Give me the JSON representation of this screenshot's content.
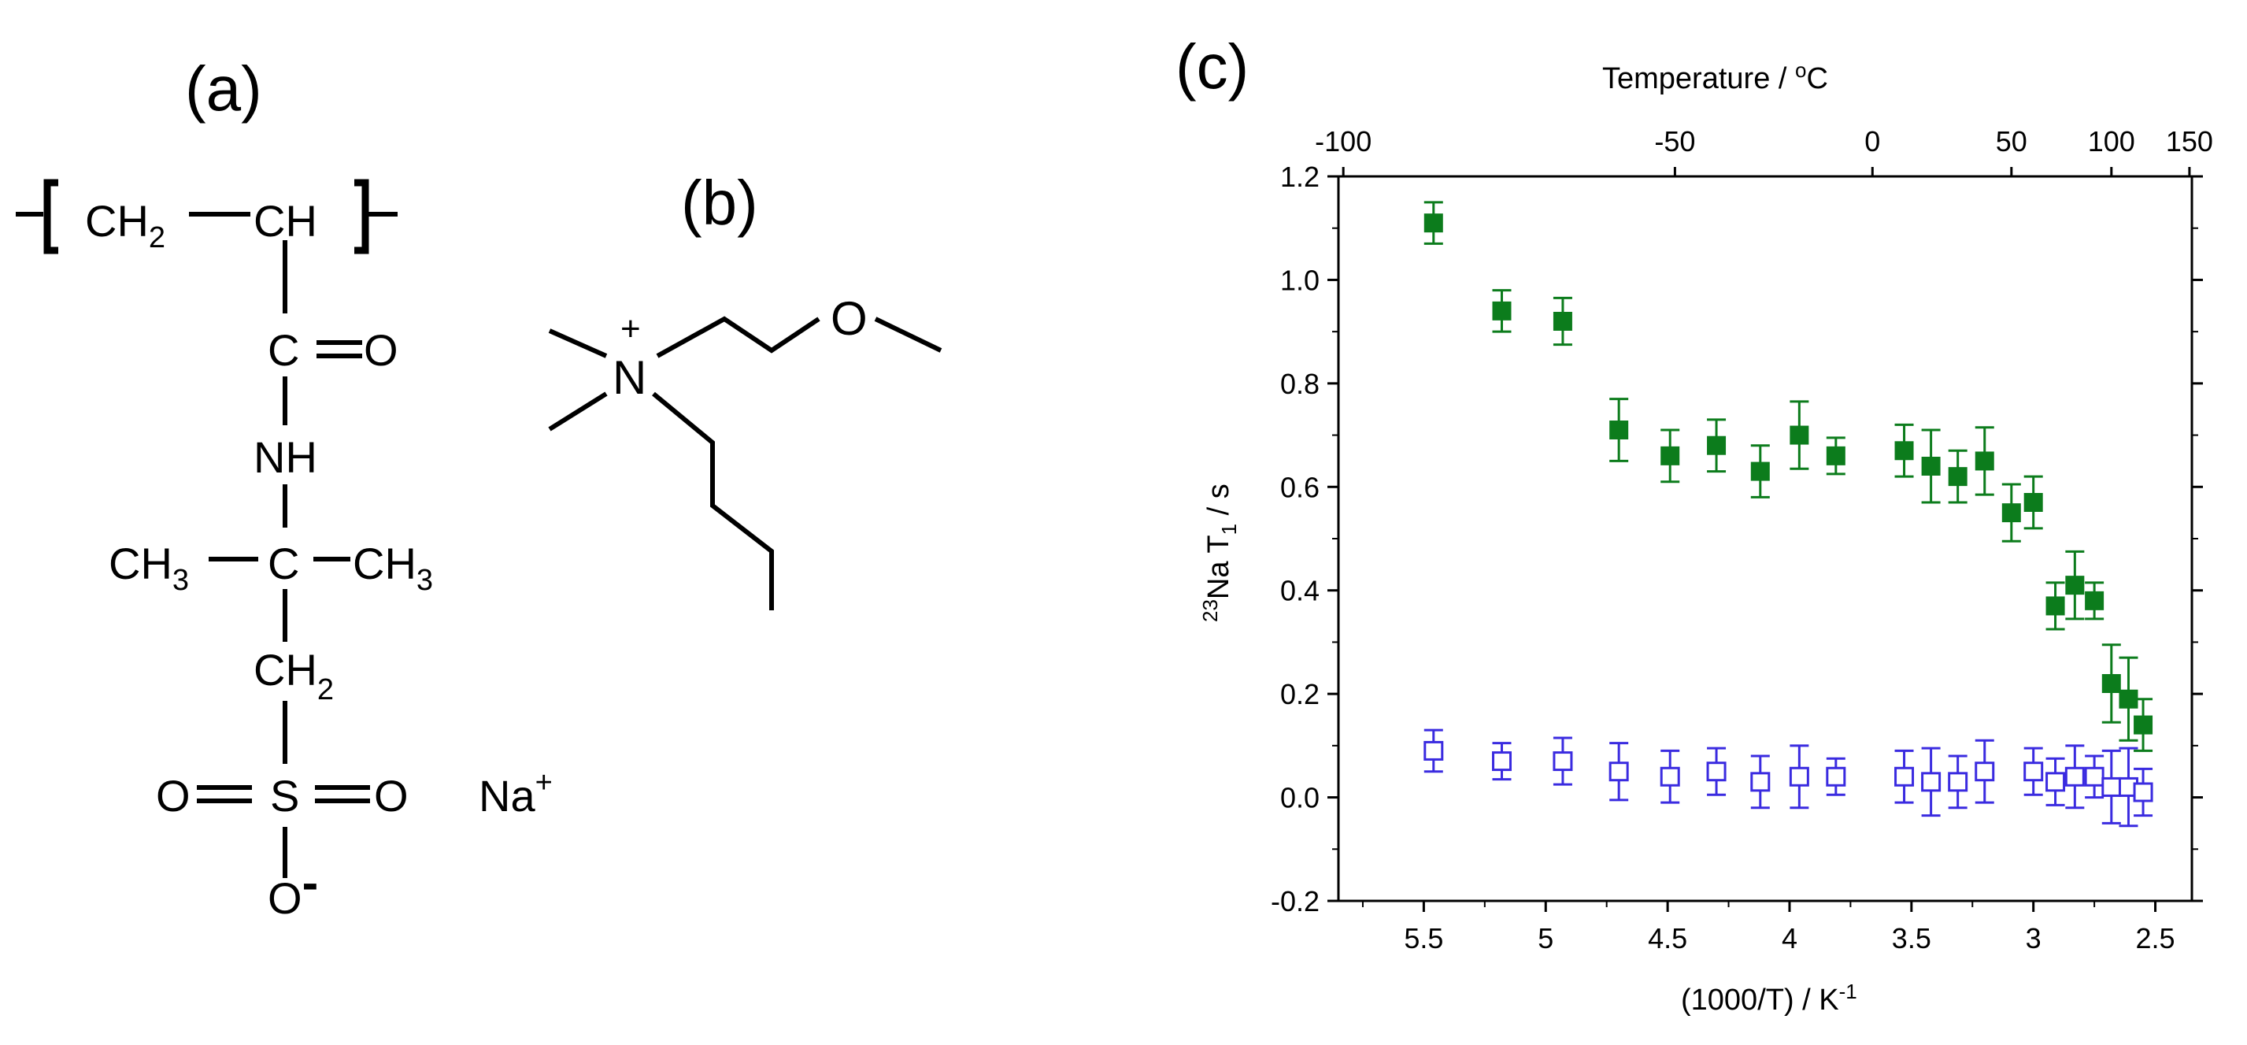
{
  "panels": {
    "a_label": "(a)",
    "b_label": "(b)",
    "c_label": "(c)"
  },
  "structure_a": {
    "ch2_top": "CH",
    "ch2_top_sub": "2",
    "ch_top": "CH",
    "c_carbonyl": "C",
    "o_carbonyl": "O",
    "nh": "NH",
    "ch3_left": "CH",
    "ch3_left_sub": "3",
    "c_quat": "C",
    "ch3_right": "CH",
    "ch3_right_sub": "3",
    "ch2_low": "CH",
    "ch2_low_sub": "2",
    "o_left": "O",
    "s": "S",
    "o_right": "O",
    "o_minus": "O",
    "o_minus_charge": "-",
    "na": "Na",
    "na_charge": "+"
  },
  "structure_b": {
    "n": "N",
    "n_charge": "+",
    "o": "O"
  },
  "chart_data": {
    "type": "scatter",
    "xlabel": "(1000/T) / K",
    "xlabel_sup": "-1",
    "ylabel_pre": "23",
    "ylabel_mid": "Na T",
    "ylabel_sub": "1",
    "ylabel_post": " / s",
    "top_xlabel_pre": "Temperature / ",
    "top_xlabel_sup": "o",
    "top_xlabel_post": "C",
    "xlim": [
      5.85,
      2.35
    ],
    "ylim": [
      -0.2,
      1.2
    ],
    "x_reversed": true,
    "x_ticks": [
      {
        "v": 5.5,
        "label": "5.5"
      },
      {
        "v": 5.0,
        "label": "5"
      },
      {
        "v": 4.5,
        "label": "4.5"
      },
      {
        "v": 4.0,
        "label": "4"
      },
      {
        "v": 3.5,
        "label": "3.5"
      },
      {
        "v": 3.0,
        "label": "3"
      },
      {
        "v": 2.5,
        "label": "2.5"
      }
    ],
    "y_ticks": [
      {
        "v": -0.2,
        "label": "-0.2"
      },
      {
        "v": 0.0,
        "label": "0.0"
      },
      {
        "v": 0.2,
        "label": "0.2"
      },
      {
        "v": 0.4,
        "label": "0.4"
      },
      {
        "v": 0.6,
        "label": "0.6"
      },
      {
        "v": 0.8,
        "label": "0.8"
      },
      {
        "v": 1.0,
        "label": "1.0"
      },
      {
        "v": 1.2,
        "label": "1.2"
      }
    ],
    "top_ticks": [
      {
        "v": 5.83,
        "label": "-100"
      },
      {
        "v": 4.47,
        "label": "-50"
      },
      {
        "v": 3.66,
        "label": "0"
      },
      {
        "v": 3.09,
        "label": "50"
      },
      {
        "v": 2.68,
        "label": "100"
      },
      {
        "v": 2.36,
        "label": "150"
      }
    ],
    "series": [
      {
        "marker": "filled-square",
        "color": "#0c7c1c",
        "points": [
          {
            "x": 5.46,
            "y": 1.11,
            "err": 0.04
          },
          {
            "x": 5.18,
            "y": 0.94,
            "err": 0.04
          },
          {
            "x": 4.93,
            "y": 0.92,
            "err": 0.045
          },
          {
            "x": 4.7,
            "y": 0.71,
            "err": 0.06
          },
          {
            "x": 4.49,
            "y": 0.66,
            "err": 0.05
          },
          {
            "x": 4.3,
            "y": 0.68,
            "err": 0.05
          },
          {
            "x": 4.12,
            "y": 0.63,
            "err": 0.05
          },
          {
            "x": 3.96,
            "y": 0.7,
            "err": 0.065
          },
          {
            "x": 3.81,
            "y": 0.66,
            "err": 0.035
          },
          {
            "x": 3.53,
            "y": 0.67,
            "err": 0.05
          },
          {
            "x": 3.42,
            "y": 0.64,
            "err": 0.07
          },
          {
            "x": 3.31,
            "y": 0.62,
            "err": 0.05
          },
          {
            "x": 3.2,
            "y": 0.65,
            "err": 0.065
          },
          {
            "x": 3.09,
            "y": 0.55,
            "err": 0.055
          },
          {
            "x": 3.0,
            "y": 0.57,
            "err": 0.05
          },
          {
            "x": 2.91,
            "y": 0.37,
            "err": 0.045
          },
          {
            "x": 2.83,
            "y": 0.41,
            "err": 0.065
          },
          {
            "x": 2.75,
            "y": 0.38,
            "err": 0.035
          },
          {
            "x": 2.68,
            "y": 0.22,
            "err": 0.075
          },
          {
            "x": 2.61,
            "y": 0.19,
            "err": 0.08
          },
          {
            "x": 2.55,
            "y": 0.14,
            "err": 0.05
          }
        ]
      },
      {
        "marker": "open-square",
        "color": "#3a2be0",
        "points": [
          {
            "x": 5.46,
            "y": 0.09,
            "err": 0.04
          },
          {
            "x": 5.18,
            "y": 0.07,
            "err": 0.035
          },
          {
            "x": 4.93,
            "y": 0.07,
            "err": 0.045
          },
          {
            "x": 4.7,
            "y": 0.05,
            "err": 0.055
          },
          {
            "x": 4.49,
            "y": 0.04,
            "err": 0.05
          },
          {
            "x": 4.3,
            "y": 0.05,
            "err": 0.045
          },
          {
            "x": 4.12,
            "y": 0.03,
            "err": 0.05
          },
          {
            "x": 3.96,
            "y": 0.04,
            "err": 0.06
          },
          {
            "x": 3.81,
            "y": 0.04,
            "err": 0.035
          },
          {
            "x": 3.53,
            "y": 0.04,
            "err": 0.05
          },
          {
            "x": 3.42,
            "y": 0.03,
            "err": 0.065
          },
          {
            "x": 3.31,
            "y": 0.03,
            "err": 0.05
          },
          {
            "x": 3.2,
            "y": 0.05,
            "err": 0.06
          },
          {
            "x": 3.0,
            "y": 0.05,
            "err": 0.045
          },
          {
            "x": 2.91,
            "y": 0.03,
            "err": 0.045
          },
          {
            "x": 2.83,
            "y": 0.04,
            "err": 0.06
          },
          {
            "x": 2.75,
            "y": 0.04,
            "err": 0.04
          },
          {
            "x": 2.68,
            "y": 0.02,
            "err": 0.07
          },
          {
            "x": 2.61,
            "y": 0.02,
            "err": 0.075
          },
          {
            "x": 2.55,
            "y": 0.01,
            "err": 0.045
          }
        ]
      }
    ]
  }
}
